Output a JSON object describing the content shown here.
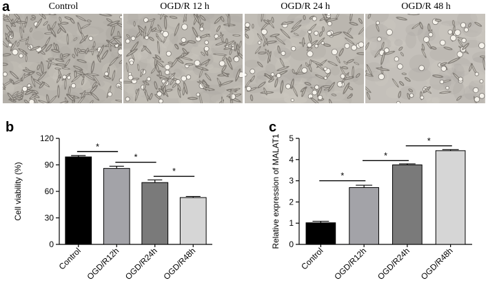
{
  "panel_labels": {
    "a": "a",
    "b": "b",
    "c": "c"
  },
  "micrographs": [
    {
      "title": "Control",
      "cell_density": 0.95,
      "rounded_fraction": 0.12,
      "tone": "#b8b4ad"
    },
    {
      "title": "OGD/R 12 h",
      "cell_density": 0.85,
      "rounded_fraction": 0.2,
      "tone": "#bcb8b1"
    },
    {
      "title": "OGD/R 24 h",
      "cell_density": 0.7,
      "rounded_fraction": 0.28,
      "tone": "#c0bcb5"
    },
    {
      "title": "OGD/R 48 h",
      "cell_density": 0.45,
      "rounded_fraction": 0.4,
      "tone": "#c4c0ba"
    }
  ],
  "chart_data": [
    {
      "type": "bar",
      "title": "",
      "xlabel": "",
      "ylabel": "Cell viability (%)",
      "categories": [
        "Control",
        "OGD/R12h",
        "OGD/R24h",
        "OGD/R48h"
      ],
      "values": [
        99,
        86,
        70,
        53
      ],
      "errors": [
        1.5,
        2.5,
        3,
        1.2
      ],
      "ylim": [
        0,
        120
      ],
      "yticks": [
        "0",
        "30",
        "60",
        "90",
        "120"
      ],
      "colors": [
        "#000000",
        "#a3a3a8",
        "#7a7a7a",
        "#d6d6d6"
      ],
      "grid": false,
      "significance": [
        {
          "from": 0,
          "to": 1,
          "y": 105,
          "label": "*"
        },
        {
          "from": 1,
          "to": 2,
          "y": 93,
          "label": "*"
        },
        {
          "from": 2,
          "to": 3,
          "y": 77,
          "label": "*"
        }
      ]
    },
    {
      "type": "bar",
      "title": "",
      "xlabel": "",
      "ylabel": "Relative expression of MALAT1",
      "categories": [
        "Control",
        "OGD/R12h",
        "OGD/R24h",
        "OGD/R48h"
      ],
      "values": [
        1.02,
        2.68,
        3.75,
        4.42
      ],
      "errors": [
        0.07,
        0.11,
        0.05,
        0.05
      ],
      "ylim": [
        0,
        5
      ],
      "yticks": [
        "0",
        "1",
        "2",
        "3",
        "4",
        "5"
      ],
      "colors": [
        "#000000",
        "#a3a3a8",
        "#7a7a7a",
        "#d6d6d6"
      ],
      "grid": false,
      "significance": [
        {
          "from": 0,
          "to": 1,
          "y": 3.0,
          "label": "*"
        },
        {
          "from": 1,
          "to": 2,
          "y": 3.95,
          "label": "*"
        },
        {
          "from": 2,
          "to": 3,
          "y": 4.65,
          "label": "*"
        }
      ]
    }
  ]
}
